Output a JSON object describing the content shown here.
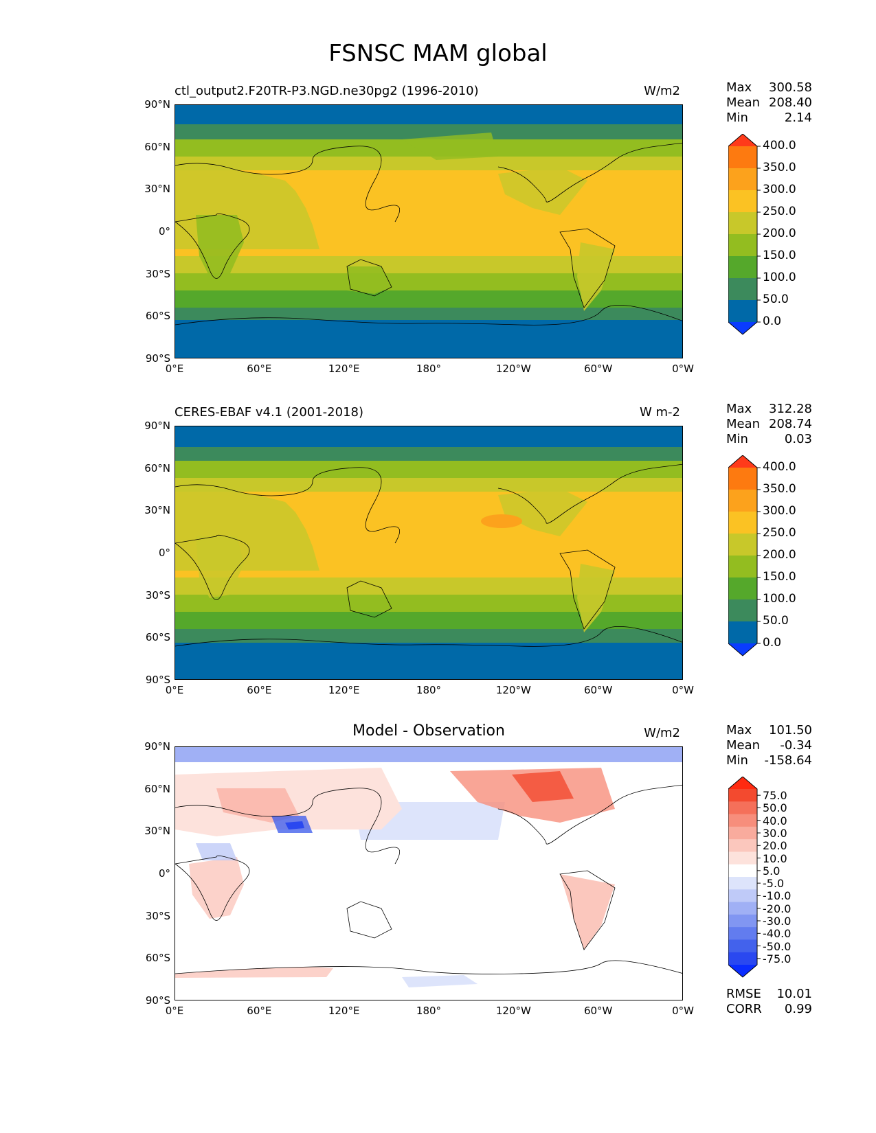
{
  "title": "FSNSC MAM global",
  "lat_ticks": [
    "90°N",
    "60°N",
    "30°N",
    "0°",
    "30°S",
    "60°S",
    "90°S"
  ],
  "lon_ticks": [
    "0°E",
    "60°E",
    "120°E",
    "180°",
    "120°W",
    "60°W",
    "0°W"
  ],
  "panels": [
    {
      "title": "ctl_output2.F20TR-P3.NGD.ne30pg2 (1996-2010)",
      "units": "W/m2",
      "stats": {
        "max_label": "Max",
        "max": "300.58",
        "mean_label": "Mean",
        "mean": "208.40",
        "min_label": "Min",
        "min": "2.14"
      },
      "colorbar": {
        "levels": [
          "400.0",
          "350.0",
          "300.0",
          "250.0",
          "200.0",
          "150.0",
          "100.0",
          "50.0",
          "0.0"
        ],
        "colors": [
          "#ff3a1a",
          "#fd7a10",
          "#fca21c",
          "#fbc223",
          "#c8c82a",
          "#93bd20",
          "#55a82b",
          "#3c8a5c",
          "#0069a8",
          "#0a3cff"
        ]
      }
    },
    {
      "title": "CERES-EBAF v4.1 (2001-2018)",
      "units": "W m-2",
      "stats": {
        "max_label": "Max",
        "max": "312.28",
        "mean_label": "Mean",
        "mean": "208.74",
        "min_label": "Min",
        "min": "0.03"
      },
      "colorbar": {
        "levels": [
          "400.0",
          "350.0",
          "300.0",
          "250.0",
          "200.0",
          "150.0",
          "100.0",
          "50.0",
          "0.0"
        ],
        "colors": [
          "#ff3a1a",
          "#fd7a10",
          "#fca21c",
          "#fbc223",
          "#c8c82a",
          "#93bd20",
          "#55a82b",
          "#3c8a5c",
          "#0069a8",
          "#0a3cff"
        ]
      }
    },
    {
      "title": "Model - Observation",
      "units": "W/m2",
      "stats": {
        "max_label": "Max",
        "max": "101.50",
        "mean_label": "Mean",
        "mean": "-0.34",
        "min_label": "Min",
        "min": "-158.64",
        "rmse_label": "RMSE",
        "rmse": "10.01",
        "corr_label": "CORR",
        "corr": "0.99"
      },
      "colorbar": {
        "levels": [
          "75.0",
          "50.0",
          "40.0",
          "30.0",
          "20.0",
          "10.0",
          "5.0",
          "-5.0",
          "-10.0",
          "-20.0",
          "-30.0",
          "-40.0",
          "-50.0",
          "-75.0"
        ],
        "colors": [
          "#ff2a10",
          "#f34a2f",
          "#f5705a",
          "#f78e7c",
          "#f9ab9d",
          "#fbc7bd",
          "#fde2dc",
          "#ffffff",
          "#dde4fb",
          "#bfcaf8",
          "#a0b0f5",
          "#8196f2",
          "#627cef",
          "#4362ec",
          "#2a48f0",
          "#0a2cff"
        ]
      }
    }
  ]
}
